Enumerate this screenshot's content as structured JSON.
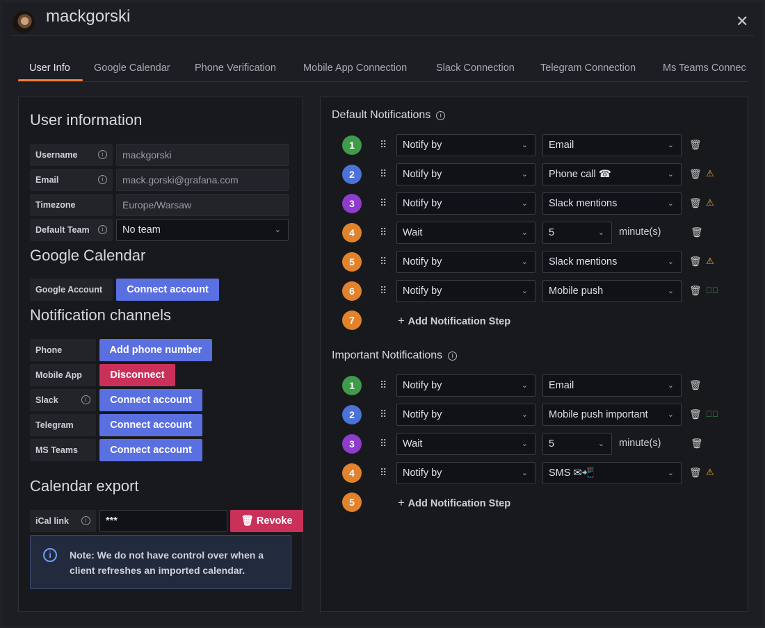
{
  "header": {
    "title": "mackgorski",
    "close_icon": "close-icon"
  },
  "tabs": [
    "User Info",
    "Google Calendar",
    "Phone Verification",
    "Mobile App Connection",
    "Slack Connection",
    "Telegram Connection",
    "Ms Teams Connec"
  ],
  "user_info": {
    "heading": "User information",
    "username_label": "Username",
    "username": "mackgorski",
    "email_label": "Email",
    "email": "mack.gorski@grafana.com",
    "timezone_label": "Timezone",
    "timezone": "Europe/Warsaw",
    "team_label": "Default Team",
    "team": "No team"
  },
  "google": {
    "heading": "Google Calendar",
    "label": "Google Account",
    "button": "Connect account"
  },
  "channels": {
    "heading": "Notification channels",
    "items": [
      {
        "label": "Phone",
        "button": "Add phone number",
        "kind": "blue",
        "info": false
      },
      {
        "label": "Mobile App",
        "button": "Disconnect",
        "kind": "red",
        "info": false
      },
      {
        "label": "Slack",
        "button": "Connect account",
        "kind": "blue",
        "info": true
      },
      {
        "label": "Telegram",
        "button": "Connect account",
        "kind": "blue",
        "info": false
      },
      {
        "label": "MS Teams",
        "button": "Connect account",
        "kind": "blue",
        "info": false
      }
    ]
  },
  "calendar": {
    "heading": "Calendar export",
    "label": "iCal link",
    "value": "***",
    "revoke": "Revoke",
    "note": "Note: We do not have control over when a client refreshes an imported calendar."
  },
  "default_notifications": {
    "title": "Default Notifications",
    "add": "Add Notification Step",
    "next_step": "7",
    "steps": [
      {
        "n": "1",
        "color": "#3f9a4a",
        "type": "Notify by",
        "value": "Email",
        "status": ""
      },
      {
        "n": "2",
        "color": "#4a72d8",
        "type": "Notify by",
        "value": "Phone call ☎",
        "status": "warning"
      },
      {
        "n": "3",
        "color": "#8e3ccc",
        "type": "Notify by",
        "value": "Slack mentions",
        "status": "warning"
      },
      {
        "n": "4",
        "color": "#e0832c",
        "type": "Wait",
        "value": "5",
        "unit": "minute(s)",
        "status": ""
      },
      {
        "n": "5",
        "color": "#e0832c",
        "type": "Notify by",
        "value": "Slack mentions",
        "status": "warning"
      },
      {
        "n": "6",
        "color": "#e0832c",
        "type": "Notify by",
        "value": "Mobile push",
        "status": "ok"
      }
    ]
  },
  "important_notifications": {
    "title": "Important Notifications",
    "add": "Add Notification Step",
    "next_step": "5",
    "steps": [
      {
        "n": "1",
        "color": "#3f9a4a",
        "type": "Notify by",
        "value": "Email",
        "status": ""
      },
      {
        "n": "2",
        "color": "#4a72d8",
        "type": "Notify by",
        "value": "Mobile push important",
        "status": "ok"
      },
      {
        "n": "3",
        "color": "#8e3ccc",
        "type": "Wait",
        "value": "5",
        "unit": "minute(s)",
        "status": ""
      },
      {
        "n": "4",
        "color": "#e0832c",
        "type": "Notify by",
        "value": "SMS ✉📲",
        "status": "warning"
      }
    ]
  },
  "colors": {
    "accent": "#f07b3f",
    "primary": "#5a6fe0",
    "destructive": "#c9315a",
    "warning": "#f0a93a",
    "success": "#3fa33f"
  }
}
